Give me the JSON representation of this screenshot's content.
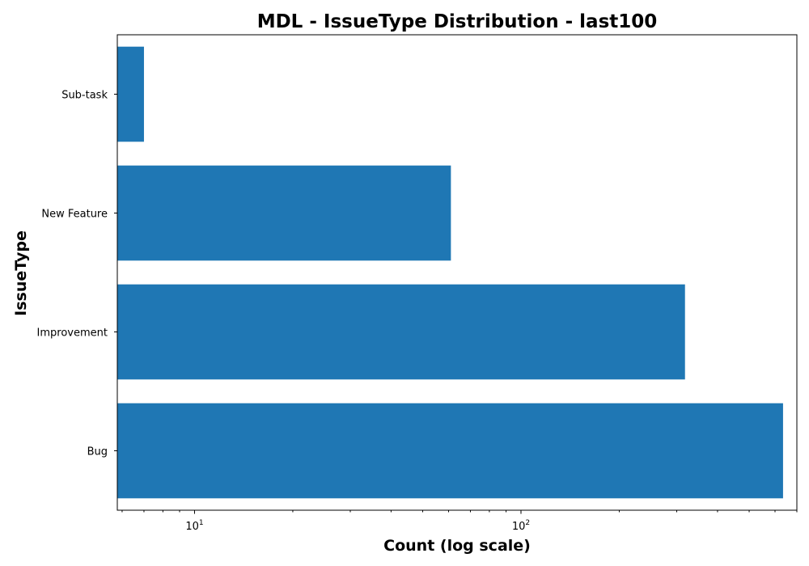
{
  "chart_data": {
    "type": "bar",
    "orientation": "horizontal",
    "title": "MDL - IssueType Distribution - last100",
    "xlabel": "Count (log scale)",
    "ylabel": "IssueType",
    "xscale": "log",
    "xlim": [
      5.8,
      700
    ],
    "categories": [
      "Bug",
      "Improvement",
      "New Feature",
      "Sub-task"
    ],
    "values": [
      635,
      318,
      61,
      7
    ],
    "x_ticks": [
      {
        "base": "10",
        "exp": "1",
        "value": 10
      },
      {
        "base": "10",
        "exp": "2",
        "value": 100
      }
    ],
    "bar_color": "#1f77b4",
    "grid": false,
    "legend": "none"
  }
}
